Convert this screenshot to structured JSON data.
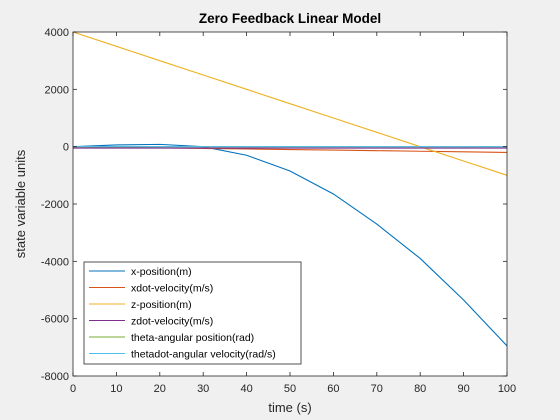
{
  "chart_data": {
    "type": "line",
    "title": "Zero Feedback Linear Model",
    "xlabel": "time (s)",
    "ylabel": "state variable units",
    "xlim": [
      0,
      100
    ],
    "ylim": [
      -8000,
      4000
    ],
    "xticks": [
      0,
      10,
      20,
      30,
      40,
      50,
      60,
      70,
      80,
      90,
      100
    ],
    "yticks": [
      -8000,
      -6000,
      -4000,
      -2000,
      0,
      2000,
      4000
    ],
    "xtick_labels": [
      "0",
      "10",
      "20",
      "30",
      "40",
      "50",
      "60",
      "70",
      "80",
      "90",
      "100"
    ],
    "ytick_labels": [
      "-8000",
      "-6000",
      "-4000",
      "-2000",
      "0",
      "2000",
      "4000"
    ],
    "grid": false,
    "legend_position": "bottom-left",
    "x": [
      0,
      10,
      20,
      30,
      40,
      50,
      60,
      70,
      80,
      90,
      100
    ],
    "series": [
      {
        "name": "x-position(m)",
        "color": "#0072BD",
        "values": [
          0,
          60,
          80,
          0,
          -300,
          -850,
          -1650,
          -2700,
          -3900,
          -5350,
          -6950
        ]
      },
      {
        "name": "xdot-velocity(m/s)",
        "color": "#D95319",
        "values": [
          0,
          -20,
          -40,
          -60,
          -80,
          -100,
          -120,
          -140,
          -160,
          -180,
          -200
        ]
      },
      {
        "name": "z-position(m)",
        "color": "#EDB120",
        "values": [
          4000,
          3500,
          3000,
          2500,
          2000,
          1500,
          1000,
          500,
          0,
          -500,
          -1000
        ]
      },
      {
        "name": "zdot-velocity(m/s)",
        "color": "#7E2F8E",
        "values": [
          -50,
          -50,
          -50,
          -50,
          -50,
          -50,
          -50,
          -50,
          -50,
          -50,
          -50
        ]
      },
      {
        "name": "theta-angular position(rad)",
        "color": "#77AC30",
        "values": [
          0,
          0,
          0,
          0,
          0,
          0,
          0,
          0,
          0,
          0,
          0
        ]
      },
      {
        "name": "thetadot-angular velocity(rad/s)",
        "color": "#4DBEEE",
        "values": [
          0,
          0,
          0,
          0,
          0,
          0,
          0,
          0,
          0,
          0,
          0
        ]
      }
    ]
  }
}
